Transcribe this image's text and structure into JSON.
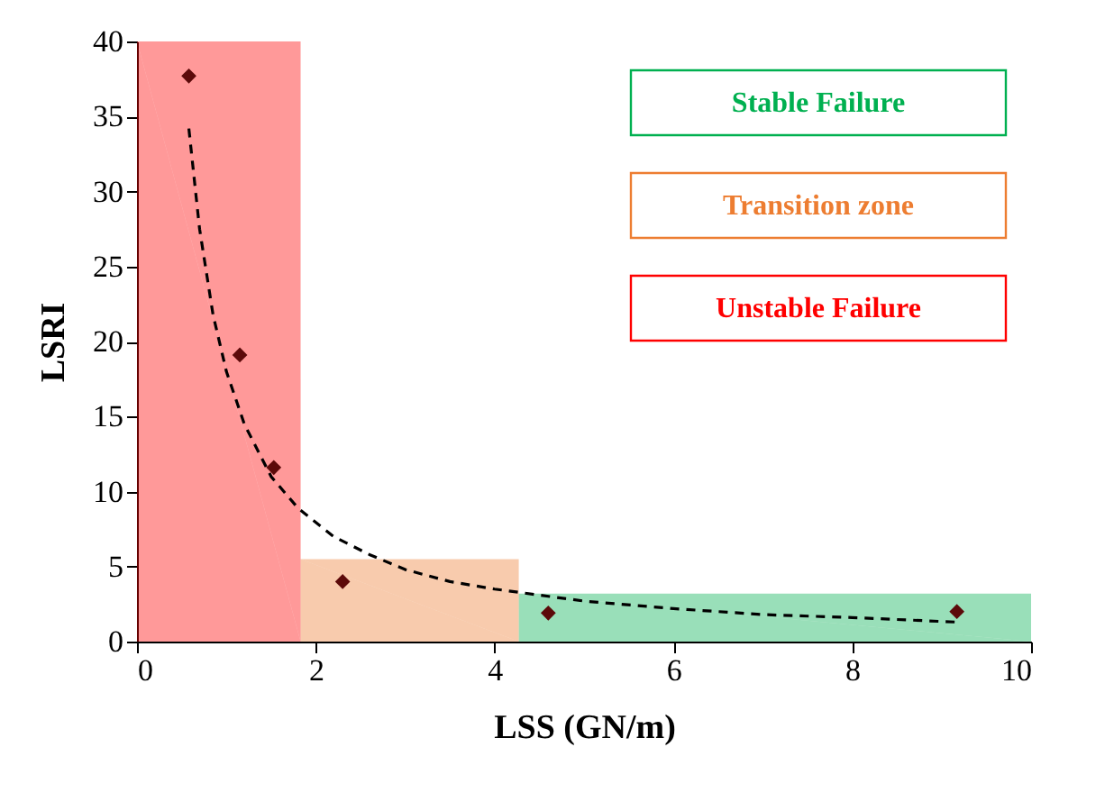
{
  "chart_data": {
    "type": "scatter",
    "xlabel": "LSS (GN/m)",
    "ylabel": "LSRI",
    "xlim": [
      0,
      10
    ],
    "xticks": [
      0,
      2,
      4,
      6,
      8,
      10
    ],
    "ylim": [
      0,
      40
    ],
    "yticks": [
      0,
      5,
      10,
      15,
      20,
      25,
      30,
      35,
      40
    ],
    "grid": false,
    "series": [
      {
        "name": "Stable Failure",
        "type": "area",
        "color": "#00b050",
        "x": [
          4.27,
          10
        ],
        "values": [
          3.2,
          3.2
        ]
      },
      {
        "name": "Transition zone",
        "type": "area",
        "color": "#ed7d31",
        "x": [
          1.83,
          4.27
        ],
        "values": [
          5.5,
          5.5
        ]
      },
      {
        "name": "Unstable Failure",
        "type": "area",
        "color": "#ff0000",
        "x": [
          0,
          1.83
        ],
        "values": [
          40,
          40
        ]
      },
      {
        "type": "scatter",
        "marker": "diamond",
        "color": "#5c0a0a",
        "x": [
          0.58,
          1.15,
          1.53,
          2.3,
          4.6,
          9.17
        ],
        "values": [
          37.7,
          19.1,
          11.6,
          4.0,
          1.9,
          2.0
        ]
      },
      {
        "type": "line",
        "line_style": "dashed",
        "marker": "none",
        "color": "#000000",
        "x": [
          0.58,
          0.7,
          0.85,
          1.0,
          1.2,
          1.5,
          1.8,
          2.2,
          2.6,
          3.0,
          3.5,
          4.0,
          5.0,
          6.0,
          7.0,
          8.0,
          9.17
        ],
        "values": [
          34.2,
          27.5,
          21.8,
          18.0,
          14.5,
          11.0,
          8.9,
          7.0,
          5.8,
          4.8,
          4.0,
          3.5,
          2.7,
          2.2,
          1.8,
          1.6,
          1.3
        ]
      }
    ]
  }
}
